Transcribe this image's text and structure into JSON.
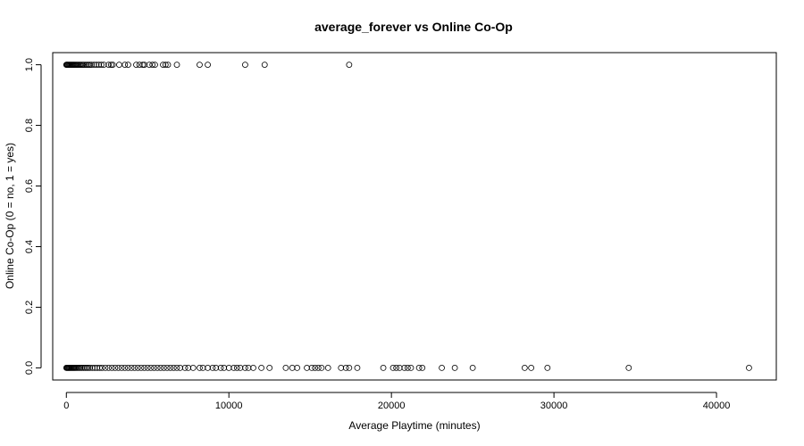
{
  "chart_data": {
    "type": "scatter",
    "title": "average_forever vs Online Co-Op",
    "xlabel": "Average Playtime (minutes)",
    "ylabel": "Online Co-Op (0 = no, 1 = yes)",
    "xlim": [
      -840,
      43680
    ],
    "ylim": [
      -0.04,
      1.04
    ],
    "xticks": [
      0,
      10000,
      20000,
      30000,
      40000
    ],
    "xtick_labels": [
      "0",
      "10000",
      "20000",
      "30000",
      "40000"
    ],
    "yticks": [
      0.0,
      0.2,
      0.4,
      0.6,
      0.8,
      1.0
    ],
    "ytick_labels": [
      "0.0",
      "0.2",
      "0.4",
      "0.6",
      "0.8",
      "1.0"
    ],
    "grid": false,
    "legend": "none",
    "marker": "open-circle",
    "series": [
      {
        "points": [
          [
            0,
            1
          ],
          [
            30,
            1
          ],
          [
            60,
            1
          ],
          [
            100,
            1
          ],
          [
            150,
            1
          ],
          [
            200,
            1
          ],
          [
            250,
            1
          ],
          [
            300,
            1
          ],
          [
            350,
            1
          ],
          [
            400,
            1
          ],
          [
            450,
            1
          ],
          [
            500,
            1
          ],
          [
            560,
            1
          ],
          [
            620,
            1
          ],
          [
            680,
            1
          ],
          [
            750,
            1
          ],
          [
            820,
            1
          ],
          [
            900,
            1
          ],
          [
            980,
            1
          ],
          [
            1060,
            1
          ],
          [
            1150,
            1
          ],
          [
            1250,
            1
          ],
          [
            1350,
            1
          ],
          [
            1450,
            1
          ],
          [
            1550,
            1
          ],
          [
            1700,
            1
          ],
          [
            1850,
            1
          ],
          [
            2000,
            1
          ],
          [
            2150,
            1
          ],
          [
            2300,
            1
          ],
          [
            2600,
            1
          ],
          [
            2750,
            1
          ],
          [
            2850,
            1
          ],
          [
            3250,
            1
          ],
          [
            3600,
            1
          ],
          [
            3800,
            1
          ],
          [
            4300,
            1
          ],
          [
            4500,
            1
          ],
          [
            4700,
            1
          ],
          [
            4800,
            1
          ],
          [
            5100,
            1
          ],
          [
            5300,
            1
          ],
          [
            5450,
            1
          ],
          [
            5950,
            1
          ],
          [
            6100,
            1
          ],
          [
            6250,
            1
          ],
          [
            6800,
            1
          ],
          [
            8200,
            1
          ],
          [
            8700,
            1
          ],
          [
            11000,
            1
          ],
          [
            12200,
            1
          ],
          [
            17400,
            1
          ],
          [
            0,
            0
          ],
          [
            40,
            0
          ],
          [
            80,
            0
          ],
          [
            120,
            0
          ],
          [
            160,
            0
          ],
          [
            200,
            0
          ],
          [
            250,
            0
          ],
          [
            300,
            0
          ],
          [
            350,
            0
          ],
          [
            400,
            0
          ],
          [
            450,
            0
          ],
          [
            500,
            0
          ],
          [
            560,
            0
          ],
          [
            620,
            0
          ],
          [
            700,
            0
          ],
          [
            780,
            0
          ],
          [
            860,
            0
          ],
          [
            950,
            0
          ],
          [
            1050,
            0
          ],
          [
            1150,
            0
          ],
          [
            1250,
            0
          ],
          [
            1350,
            0
          ],
          [
            1450,
            0
          ],
          [
            1600,
            0
          ],
          [
            1750,
            0
          ],
          [
            1900,
            0
          ],
          [
            2050,
            0
          ],
          [
            2200,
            0
          ],
          [
            2400,
            0
          ],
          [
            2600,
            0
          ],
          [
            2800,
            0
          ],
          [
            3000,
            0
          ],
          [
            3200,
            0
          ],
          [
            3400,
            0
          ],
          [
            3600,
            0
          ],
          [
            3800,
            0
          ],
          [
            4000,
            0
          ],
          [
            4200,
            0
          ],
          [
            4400,
            0
          ],
          [
            4600,
            0
          ],
          [
            4800,
            0
          ],
          [
            5000,
            0
          ],
          [
            5200,
            0
          ],
          [
            5400,
            0
          ],
          [
            5600,
            0
          ],
          [
            5800,
            0
          ],
          [
            6000,
            0
          ],
          [
            6200,
            0
          ],
          [
            6400,
            0
          ],
          [
            6600,
            0
          ],
          [
            6800,
            0
          ],
          [
            7000,
            0
          ],
          [
            7300,
            0
          ],
          [
            7500,
            0
          ],
          [
            7800,
            0
          ],
          [
            8200,
            0
          ],
          [
            8400,
            0
          ],
          [
            8700,
            0
          ],
          [
            9000,
            0
          ],
          [
            9200,
            0
          ],
          [
            9500,
            0
          ],
          [
            9700,
            0
          ],
          [
            10000,
            0
          ],
          [
            10300,
            0
          ],
          [
            10500,
            0
          ],
          [
            10700,
            0
          ],
          [
            11000,
            0
          ],
          [
            11200,
            0
          ],
          [
            11500,
            0
          ],
          [
            12000,
            0
          ],
          [
            12500,
            0
          ],
          [
            13500,
            0
          ],
          [
            13900,
            0
          ],
          [
            14200,
            0
          ],
          [
            14800,
            0
          ],
          [
            15100,
            0
          ],
          [
            15300,
            0
          ],
          [
            15500,
            0
          ],
          [
            15700,
            0
          ],
          [
            16100,
            0
          ],
          [
            16900,
            0
          ],
          [
            17200,
            0
          ],
          [
            17400,
            0
          ],
          [
            17900,
            0
          ],
          [
            19500,
            0
          ],
          [
            20100,
            0
          ],
          [
            20300,
            0
          ],
          [
            20500,
            0
          ],
          [
            20800,
            0
          ],
          [
            21000,
            0
          ],
          [
            21200,
            0
          ],
          [
            21700,
            0
          ],
          [
            21900,
            0
          ],
          [
            23100,
            0
          ],
          [
            23900,
            0
          ],
          [
            25000,
            0
          ],
          [
            28200,
            0
          ],
          [
            28600,
            0
          ],
          [
            29600,
            0
          ],
          [
            34600,
            0
          ],
          [
            42000,
            0
          ]
        ]
      }
    ]
  }
}
